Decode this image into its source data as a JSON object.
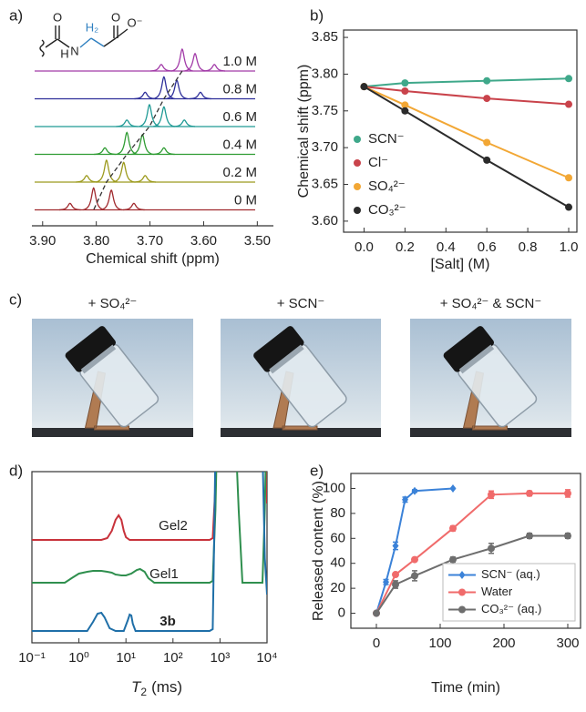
{
  "chart_data": [
    {
      "type": "spectrum",
      "panel_label": "a)",
      "xlabel": "Chemical shift (ppm)",
      "xlim": [
        3.92,
        3.47
      ],
      "xticks": [
        {
          "value": 3.9,
          "label": "3.90"
        },
        {
          "value": 3.8,
          "label": "3.80"
        },
        {
          "value": 3.7,
          "label": "3.70"
        },
        {
          "value": 3.6,
          "label": "3.60"
        },
        {
          "value": 3.5,
          "label": "3.50"
        }
      ],
      "series": [
        {
          "name": "1.0 M",
          "color": "#a23ba8",
          "x": [
            3.679,
            3.64,
            3.616,
            3.58
          ],
          "values": [
            0.3,
            1,
            0.8,
            0.3
          ]
        },
        {
          "name": "0.8 M",
          "color": "#2e2f9a",
          "x": [
            3.709,
            3.674,
            3.65,
            3.606
          ],
          "values": [
            0.3,
            1,
            0.85,
            0.3
          ]
        },
        {
          "name": "0.6 M",
          "color": "#1f9a95",
          "x": [
            3.743,
            3.701,
            3.674,
            3.636
          ],
          "values": [
            0.3,
            1,
            0.9,
            0.3
          ]
        },
        {
          "name": "0.4 M",
          "color": "#2f9c33",
          "x": [
            3.784,
            3.743,
            3.714,
            3.674
          ],
          "values": [
            0.3,
            1,
            0.9,
            0.3
          ]
        },
        {
          "name": "0.2 M",
          "color": "#9c9a1d",
          "x": [
            3.818,
            3.781,
            3.749,
            3.709
          ],
          "values": [
            0.3,
            1,
            0.9,
            0.3
          ]
        },
        {
          "name": "0 M",
          "color": "#a02a2e",
          "x": [
            3.849,
            3.805,
            3.772,
            3.73
          ],
          "values": [
            0.3,
            1,
            0.9,
            0.3
          ]
        }
      ]
    },
    {
      "type": "line",
      "panel_label": "b)",
      "xlabel": "[Salt] (M)",
      "ylabel": "Chemical shift (ppm)",
      "x": [
        0,
        0.2,
        0.6,
        1.0
      ],
      "xlim": [
        -0.1,
        1.04
      ],
      "xticks": [
        {
          "value": 0,
          "label": "0.0"
        },
        {
          "value": 0.2,
          "label": "0.2"
        },
        {
          "value": 0.4,
          "label": "0.4"
        },
        {
          "value": 0.6,
          "label": "0.6"
        },
        {
          "value": 0.8,
          "label": "0.8"
        },
        {
          "value": 1.0,
          "label": "1.0"
        }
      ],
      "ylim": [
        3.585,
        3.86
      ],
      "yticks": [
        {
          "value": 3.6,
          "label": "3.60"
        },
        {
          "value": 3.65,
          "label": "3.65"
        },
        {
          "value": 3.7,
          "label": "3.70"
        },
        {
          "value": 3.75,
          "label": "3.75"
        },
        {
          "value": 3.8,
          "label": "3.80"
        },
        {
          "value": 3.85,
          "label": "3.85"
        }
      ],
      "legend": "lower left",
      "series": [
        {
          "name": "SCN⁻",
          "color": "#3fa88a",
          "marker": "circle",
          "values": [
            3.783,
            3.788,
            3.791,
            3.794
          ]
        },
        {
          "name": "Cl⁻",
          "color": "#c9434b",
          "marker": "circle",
          "values": [
            3.783,
            3.777,
            3.767,
            3.759
          ]
        },
        {
          "name": "SO₄²⁻",
          "color": "#f2a735",
          "marker": "circle",
          "values": [
            3.783,
            3.758,
            3.707,
            3.659
          ]
        },
        {
          "name": "CO₃²⁻",
          "color": "#2b2b2b",
          "marker": "circle",
          "values": [
            3.783,
            3.75,
            3.683,
            3.619
          ]
        }
      ]
    },
    {
      "type": "distribution",
      "panel_label": "d)",
      "xlabel": {
        "symbol": "T",
        "subscript": "2",
        "unit": "(ms)"
      },
      "xscale": "log",
      "xlim": [
        0.1,
        10000
      ],
      "xticks": [
        {
          "value": 0.1,
          "label": "10⁻¹"
        },
        {
          "value": 1,
          "label": "10⁰"
        },
        {
          "value": 10,
          "label": "10¹"
        },
        {
          "value": 100,
          "label": "10²"
        },
        {
          "value": 1000,
          "label": "10³"
        },
        {
          "value": 10000,
          "label": "10⁴"
        }
      ],
      "series": [
        {
          "name": "Gel2",
          "color": "#c8323b",
          "x": [
            0.1,
            3,
            4,
            5,
            6,
            7,
            8,
            9,
            10,
            12,
            600,
            700,
            800,
            900,
            1000,
            8000,
            8500,
            9500,
            10000
          ],
          "values": [
            0,
            0,
            2,
            10,
            22,
            27,
            22,
            10,
            3,
            0,
            0,
            2,
            60,
            150,
            200,
            200,
            200,
            80,
            40
          ]
        },
        {
          "name": "Gel1",
          "color": "#2f8f4e",
          "x": [
            0.1,
            0.5,
            0.7,
            1,
            1.5,
            2,
            3,
            4,
            5,
            6,
            8,
            10,
            13,
            17,
            20,
            25,
            30,
            40,
            600,
            700,
            800,
            900,
            2000,
            2500,
            3000,
            8000,
            9000,
            10000
          ],
          "values": [
            0,
            0,
            5,
            10,
            12,
            13,
            13,
            12,
            11,
            9,
            8,
            8,
            10,
            14,
            15,
            12,
            5,
            0,
            0,
            2,
            80,
            200,
            200,
            80,
            0,
            0,
            80,
            200
          ]
        },
        {
          "name": "3b",
          "bold": true,
          "color": "#1f6fa8",
          "x": [
            0.1,
            1.5,
            2,
            2.5,
            3,
            3.5,
            4.5,
            6,
            9,
            11,
            12,
            13,
            14,
            16,
            600,
            700,
            750,
            800,
            8000,
            9000,
            10000
          ],
          "values": [
            0,
            0,
            10,
            19,
            20,
            15,
            3,
            0,
            0,
            12,
            18,
            17,
            8,
            0,
            0,
            2,
            100,
            200,
            200,
            80,
            40
          ]
        }
      ]
    },
    {
      "type": "line",
      "panel_label": "e)",
      "xlabel": "Time (min)",
      "ylabel": "Released content (%)",
      "xlim": [
        -40,
        320
      ],
      "xticks": [
        0,
        100,
        200,
        300
      ],
      "ylim": [
        -12,
        112
      ],
      "yticks": [
        0,
        20,
        40,
        60,
        80,
        100
      ],
      "legend": "lower right",
      "legend_frame": true,
      "series": [
        {
          "name": "SCN⁻ (aq.)",
          "color": "#3b82d8",
          "marker": "diamond",
          "x": [
            0,
            15,
            30,
            45,
            60,
            120
          ],
          "values": [
            0,
            25,
            54,
            91,
            98,
            100
          ],
          "errors": [
            0,
            2,
            3,
            2,
            1,
            0
          ]
        },
        {
          "name": "Water",
          "color": "#f06b6b",
          "marker": "circle",
          "x": [
            0,
            30,
            60,
            120,
            180,
            240,
            300
          ],
          "values": [
            0,
            31,
            43,
            68,
            95,
            96,
            96
          ],
          "errors": [
            0,
            1,
            1,
            2,
            3,
            2,
            3
          ]
        },
        {
          "name": "CO₃²⁻ (aq.)",
          "color": "#6e6e6e",
          "marker": "circle",
          "x": [
            0,
            30,
            60,
            120,
            180,
            240,
            300
          ],
          "values": [
            0,
            23,
            30,
            43,
            52,
            62,
            62
          ],
          "errors": [
            0,
            3,
            4,
            2,
            4,
            2,
            2
          ]
        }
      ]
    }
  ],
  "photos": {
    "panel_label": "c)",
    "captions": [
      "+ SO₄²⁻",
      "+ SCN⁻",
      "+ SO₄²⁻ & SCN⁻"
    ]
  },
  "structure": {
    "labels": [
      "O",
      "H",
      "N",
      "H₂",
      "O",
      "O⁻"
    ]
  }
}
